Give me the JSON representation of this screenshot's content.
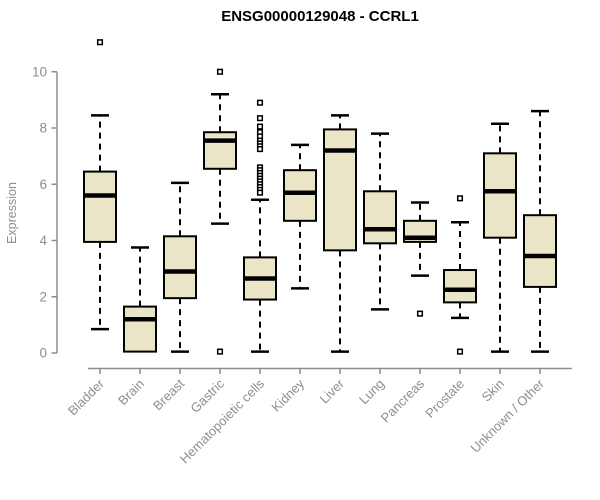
{
  "chart_data": {
    "type": "boxplot",
    "title": "ENSG00000129048 - CCRL1",
    "xlabel": "",
    "ylabel": "Expression",
    "ylim": [
      0,
      10
    ],
    "yticks": [
      0,
      2,
      4,
      6,
      8,
      10
    ],
    "grid": false,
    "legend": "none",
    "colors": {
      "box_fill": "#EBE5C7",
      "box_stroke": "#000000",
      "median": "#000000",
      "whisker": "#000000",
      "outlier_stroke": "#000000",
      "outlier_fill": "#FFFFFF",
      "axis": "#8E8E8E",
      "tick_label": "#8E8E8E",
      "title": "#000000"
    },
    "categories": [
      "Bladder",
      "Brain",
      "Breast",
      "Gastric",
      "Hematopoietic cells",
      "Kidney",
      "Liver",
      "Lung",
      "Pancreas",
      "Prostate",
      "Skin",
      "Unknown / Other"
    ],
    "series": [
      {
        "label": "Bladder",
        "whisker_low": 0.85,
        "q1": 3.95,
        "median": 5.6,
        "q3": 6.45,
        "whisker_high": 8.45,
        "outliers": [
          11.05
        ]
      },
      {
        "label": "Brain",
        "whisker_low": 0.05,
        "q1": 0.05,
        "median": 1.2,
        "q3": 1.65,
        "whisker_high": 3.75,
        "outliers": []
      },
      {
        "label": "Breast",
        "whisker_low": 0.05,
        "q1": 1.95,
        "median": 2.9,
        "q3": 4.15,
        "whisker_high": 6.05,
        "outliers": []
      },
      {
        "label": "Gastric",
        "whisker_low": 4.6,
        "q1": 6.55,
        "median": 7.55,
        "q3": 7.85,
        "whisker_high": 9.2,
        "outliers": [
          10.0,
          0.05
        ]
      },
      {
        "label": "Hematopoietic cells",
        "whisker_low": 0.05,
        "q1": 1.9,
        "median": 2.65,
        "q3": 3.4,
        "whisker_high": 5.45,
        "outliers": [
          8.9,
          8.35,
          8.05,
          7.85,
          7.7,
          7.55,
          7.45,
          7.35,
          7.25,
          6.6,
          6.5,
          6.4,
          6.3,
          6.2,
          6.1,
          6.0,
          5.9,
          5.8,
          5.7
        ]
      },
      {
        "label": "Kidney",
        "whisker_low": 2.3,
        "q1": 4.7,
        "median": 5.7,
        "q3": 6.5,
        "whisker_high": 7.4,
        "outliers": []
      },
      {
        "label": "Liver",
        "whisker_low": 0.05,
        "q1": 3.65,
        "median": 7.2,
        "q3": 7.95,
        "whisker_high": 8.45,
        "outliers": []
      },
      {
        "label": "Lung",
        "whisker_low": 1.55,
        "q1": 3.9,
        "median": 4.4,
        "q3": 5.75,
        "whisker_high": 7.8,
        "outliers": []
      },
      {
        "label": "Pancreas",
        "whisker_low": 2.75,
        "q1": 3.95,
        "median": 4.1,
        "q3": 4.7,
        "whisker_high": 5.35,
        "outliers": [
          1.4
        ]
      },
      {
        "label": "Prostate",
        "whisker_low": 1.25,
        "q1": 1.8,
        "median": 2.25,
        "q3": 2.95,
        "whisker_high": 4.65,
        "outliers": [
          5.5,
          0.05
        ]
      },
      {
        "label": "Skin",
        "whisker_low": 0.05,
        "q1": 4.1,
        "median": 5.75,
        "q3": 7.1,
        "whisker_high": 8.15,
        "outliers": []
      },
      {
        "label": "Unknown / Other",
        "whisker_low": 0.05,
        "q1": 2.35,
        "median": 3.45,
        "q3": 4.9,
        "whisker_high": 8.6,
        "outliers": []
      }
    ]
  }
}
